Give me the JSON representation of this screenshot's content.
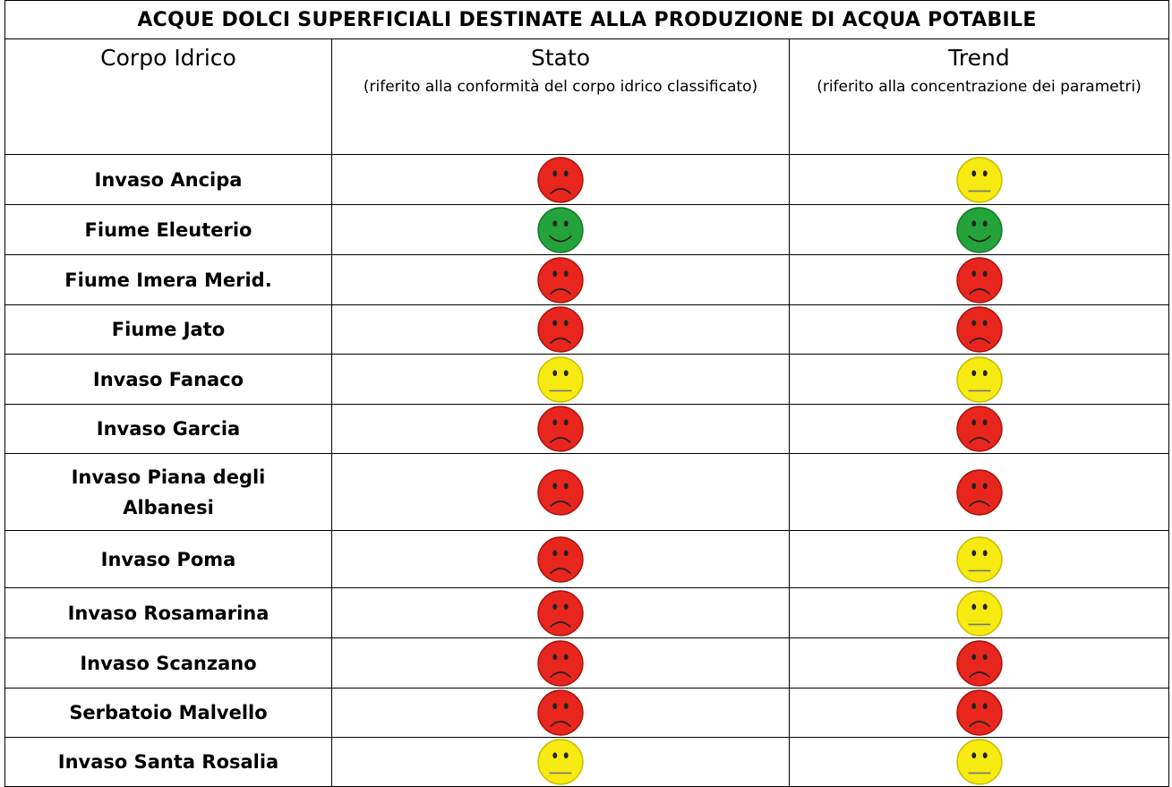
{
  "header": {
    "title": "ACQUE DOLCI SUPERFICIALI DESTINATE ALLA PRODUZIONE DI ACQUA POTABILE"
  },
  "table": {
    "columns": [
      {
        "label": "Corpo Idrico"
      },
      {
        "label": "Stato",
        "note": "(riferito alla conformità del corpo idrico classificato)"
      },
      {
        "label": "Trend",
        "note": "(riferito alla concentrazione dei parametri)"
      }
    ],
    "rows": [
      {
        "name": "Invaso Ancipa",
        "stato": "red",
        "trend": "yellow"
      },
      {
        "name": "Fiume Eleuterio",
        "stato": "green",
        "trend": "green"
      },
      {
        "name": "Fiume Imera  Merid.",
        "stato": "red",
        "trend": "red"
      },
      {
        "name": "Fiume Jato",
        "stato": "red",
        "trend": "red"
      },
      {
        "name": "Invaso Fanaco",
        "stato": "yellow",
        "trend": "yellow"
      },
      {
        "name": "Invaso Garcia",
        "stato": "red",
        "trend": "red"
      },
      {
        "name": "Invaso Piana degli Albanesi",
        "stato": "red",
        "trend": "red"
      },
      {
        "name": "Invaso Poma",
        "stato": "red",
        "trend": "yellow"
      },
      {
        "name": "Invaso Rosamarina",
        "stato": "red",
        "trend": "yellow"
      },
      {
        "name": "Invaso Scanzano",
        "stato": "red",
        "trend": "red"
      },
      {
        "name": "Serbatoio Malvello",
        "stato": "red",
        "trend": "red"
      },
      {
        "name": "Invaso Santa Rosalia",
        "stato": "yellow",
        "trend": "yellow"
      }
    ]
  }
}
